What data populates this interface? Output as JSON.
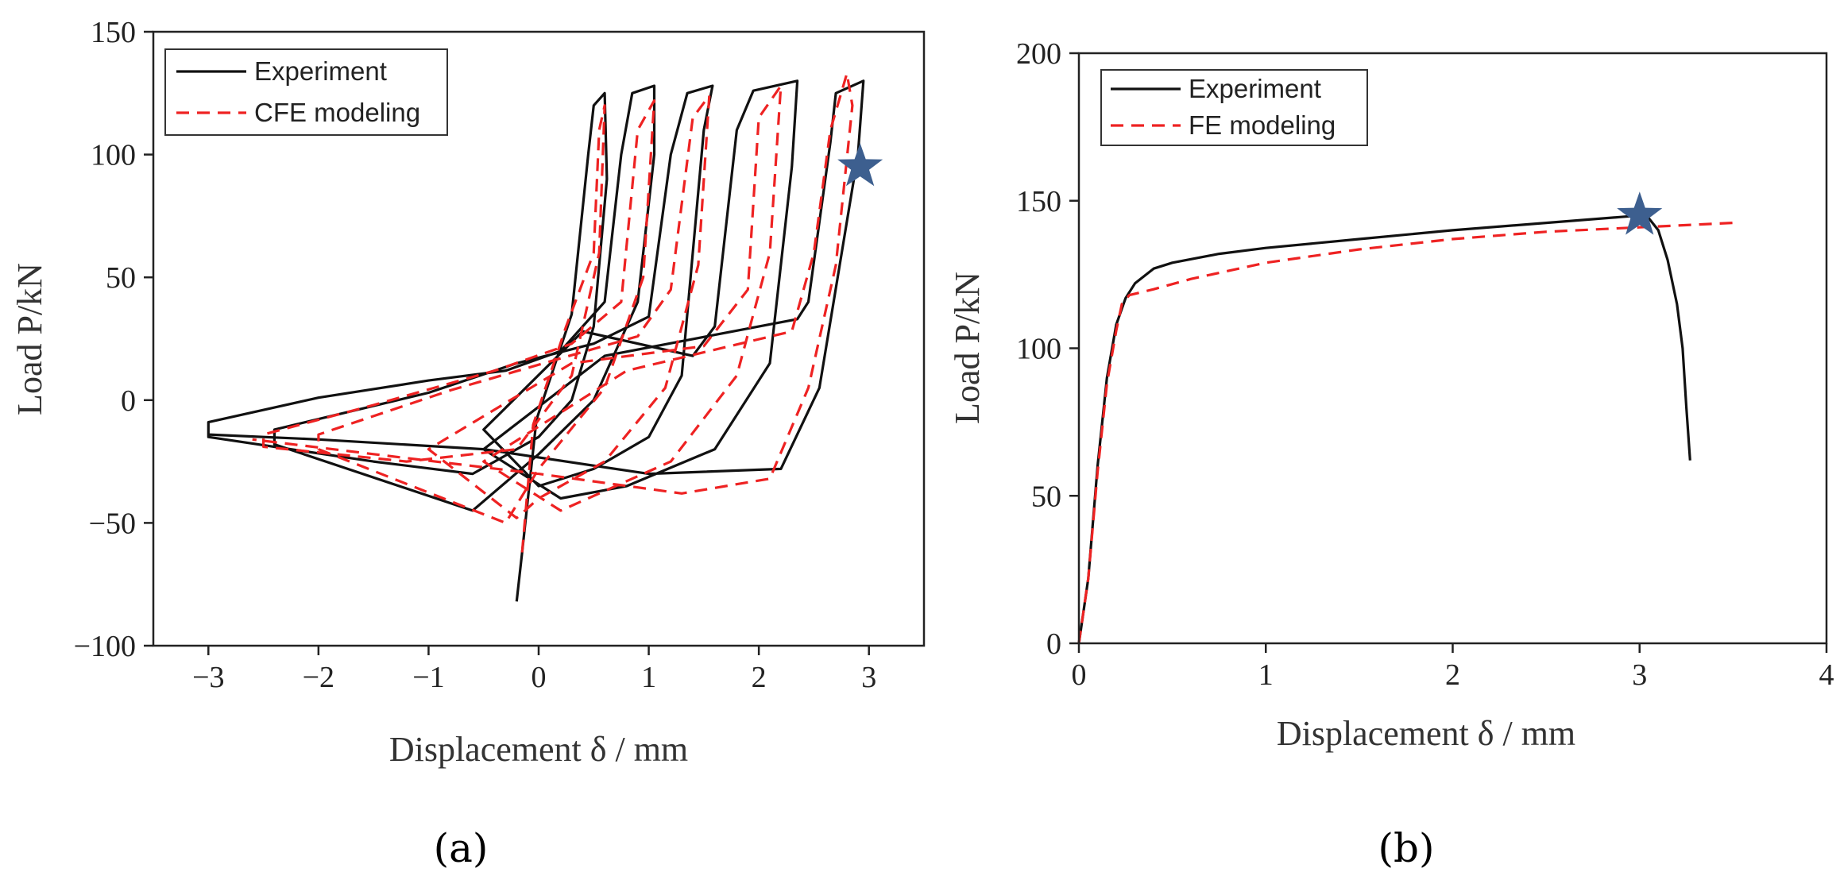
{
  "chart_data": [
    {
      "panel": "a",
      "caption": "(a)",
      "type": "line",
      "title": "",
      "xlabel": "Displacement  δ / mm",
      "ylabel": "Load  P/kN",
      "xlim": [
        -3.5,
        3.5
      ],
      "ylim": [
        -100,
        150
      ],
      "xticks": [
        -3,
        -2,
        -1,
        0,
        1,
        2,
        3
      ],
      "xtick_labels": [
        "−3",
        "−2",
        "−1",
        "0",
        "1",
        "2",
        "3"
      ],
      "yticks": [
        -100,
        -50,
        0,
        50,
        100,
        150
      ],
      "ytick_labels": [
        "−100",
        "−50",
        "0",
        "50",
        "100",
        "150"
      ],
      "legend": [
        {
          "label": "Experiment",
          "color": "#111111",
          "style": "solid"
        },
        {
          "label": "CFE modeling",
          "color": "#ee2222",
          "style": "dashed"
        }
      ],
      "legend_position": "top-left",
      "marker": {
        "shape": "star",
        "x": 2.92,
        "y": 95,
        "color": "#3d5f8f"
      },
      "series": [
        {
          "name": "Experiment",
          "loops": [
            [
              [
                -0.2,
                -82
              ],
              [
                -0.15,
                -62
              ],
              [
                -0.02,
                -8
              ],
              [
                0.3,
                35
              ],
              [
                0.45,
                100
              ],
              [
                0.5,
                120
              ],
              [
                0.6,
                125
              ],
              [
                0.62,
                90
              ],
              [
                0.5,
                30
              ],
              [
                0.3,
                0
              ],
              [
                0,
                -15
              ],
              [
                -0.6,
                -30
              ],
              [
                -1.5,
                -25
              ],
              [
                -3,
                -15
              ],
              [
                -3,
                -9
              ],
              [
                -2,
                1
              ],
              [
                -1,
                8
              ],
              [
                -0.3,
                12
              ],
              [
                0.2,
                20
              ],
              [
                0.6,
                40
              ],
              [
                0.75,
                100
              ],
              [
                0.85,
                125
              ],
              [
                1.05,
                128
              ],
              [
                1.05,
                100
              ],
              [
                0.9,
                40
              ],
              [
                0.5,
                0
              ],
              [
                0,
                -22
              ],
              [
                -0.6,
                -45
              ],
              [
                -2.4,
                -18
              ],
              [
                -2.4,
                -12
              ],
              [
                -1,
                3
              ],
              [
                -0.2,
                15
              ],
              [
                0.5,
                23
              ],
              [
                1.0,
                34
              ],
              [
                1.2,
                100
              ],
              [
                1.35,
                125
              ],
              [
                1.58,
                128
              ],
              [
                1.5,
                110
              ],
              [
                1.3,
                10
              ],
              [
                1,
                -15
              ],
              [
                0.5,
                -28
              ],
              [
                0,
                -35
              ],
              [
                -0.5,
                -12
              ],
              [
                0.4,
                28
              ],
              [
                1.4,
                18
              ],
              [
                1.6,
                30
              ],
              [
                1.8,
                110
              ],
              [
                1.95,
                126
              ],
              [
                2.35,
                130
              ],
              [
                2.3,
                95
              ],
              [
                2.1,
                15
              ],
              [
                1.6,
                -20
              ],
              [
                0.8,
                -35
              ],
              [
                0.2,
                -40
              ],
              [
                -0.5,
                -20
              ],
              [
                0.6,
                18
              ],
              [
                2.35,
                33
              ],
              [
                2.45,
                40
              ],
              [
                2.65,
                105
              ],
              [
                2.7,
                125
              ],
              [
                2.95,
                130
              ],
              [
                2.9,
                100
              ],
              [
                2.55,
                5
              ],
              [
                2.2,
                -28
              ],
              [
                1,
                -30
              ],
              [
                -0.5,
                -20
              ],
              [
                -2,
                -16
              ],
              [
                -3,
                -14
              ]
            ]
          ]
        },
        {
          "name": "CFE modeling",
          "loops": [
            [
              [
                -0.15,
                -62
              ],
              [
                -0.05,
                -10
              ],
              [
                0.25,
                30
              ],
              [
                0.5,
                60
              ],
              [
                0.55,
                110
              ],
              [
                0.6,
                120
              ],
              [
                0.55,
                60
              ],
              [
                0.3,
                10
              ],
              [
                -0.2,
                -20
              ],
              [
                -1.2,
                -25
              ],
              [
                -2.5,
                -19
              ],
              [
                -2.5,
                -14
              ],
              [
                -1.5,
                -2
              ],
              [
                -0.4,
                12
              ],
              [
                0.3,
                23
              ],
              [
                0.75,
                40
              ],
              [
                0.9,
                110
              ],
              [
                1.05,
                122
              ],
              [
                0.95,
                50
              ],
              [
                0.6,
                5
              ],
              [
                0,
                -28
              ],
              [
                -0.3,
                -50
              ],
              [
                -2,
                -20
              ],
              [
                -2,
                -14
              ],
              [
                -0.8,
                4
              ],
              [
                0.2,
                17
              ],
              [
                0.9,
                26
              ],
              [
                1.2,
                45
              ],
              [
                1.4,
                115
              ],
              [
                1.55,
                124
              ],
              [
                1.45,
                55
              ],
              [
                1.15,
                5
              ],
              [
                0.6,
                -25
              ],
              [
                0,
                -40
              ],
              [
                -0.2,
                -48
              ],
              [
                -1,
                -20
              ],
              [
                0.3,
                15
              ],
              [
                1.5,
                22
              ],
              [
                1.9,
                45
              ],
              [
                2.0,
                115
              ],
              [
                2.2,
                128
              ],
              [
                2.1,
                60
              ],
              [
                1.8,
                10
              ],
              [
                1.2,
                -25
              ],
              [
                0.2,
                -45
              ],
              [
                -0.5,
                -25
              ],
              [
                0.8,
                12
              ],
              [
                2.3,
                28
              ],
              [
                2.5,
                60
              ],
              [
                2.65,
                110
              ],
              [
                2.8,
                133
              ],
              [
                2.85,
                120
              ],
              [
                2.7,
                55
              ],
              [
                2.45,
                5
              ],
              [
                2.1,
                -32
              ],
              [
                1.3,
                -38
              ],
              [
                0,
                -30
              ],
              [
                -1.5,
                -22
              ],
              [
                -2.6,
                -16
              ]
            ]
          ]
        }
      ]
    },
    {
      "panel": "b",
      "caption": "(b)",
      "type": "line",
      "title": "",
      "xlabel": "Displacement  δ / mm",
      "ylabel": "Load  P/kN",
      "xlim": [
        0,
        4
      ],
      "ylim": [
        0,
        200
      ],
      "xticks": [
        0,
        1,
        2,
        3,
        4
      ],
      "xtick_labels": [
        "0",
        "1",
        "2",
        "3",
        "4"
      ],
      "yticks": [
        0,
        50,
        100,
        150,
        200
      ],
      "ytick_labels": [
        "0",
        "50",
        "100",
        "150",
        "200"
      ],
      "legend": [
        {
          "label": "Experiment",
          "color": "#111111",
          "style": "solid"
        },
        {
          "label": "FE modeling",
          "color": "#ee2222",
          "style": "dashed"
        }
      ],
      "legend_position": "top-left",
      "marker": {
        "shape": "star",
        "x": 3.0,
        "y": 145,
        "color": "#3d5f8f"
      },
      "series": [
        {
          "name": "Experiment",
          "points": [
            [
              0,
              0
            ],
            [
              0.05,
              22
            ],
            [
              0.1,
              60
            ],
            [
              0.15,
              90
            ],
            [
              0.2,
              108
            ],
            [
              0.25,
              117
            ],
            [
              0.3,
              122
            ],
            [
              0.4,
              127
            ],
            [
              0.5,
              129
            ],
            [
              0.75,
              132
            ],
            [
              1.0,
              134
            ],
            [
              1.5,
              137
            ],
            [
              2.0,
              140
            ],
            [
              2.5,
              142.5
            ],
            [
              2.9,
              144.5
            ],
            [
              3.0,
              145
            ],
            [
              3.05,
              144
            ],
            [
              3.1,
              140
            ],
            [
              3.15,
              130
            ],
            [
              3.2,
              115
            ],
            [
              3.23,
              100
            ],
            [
              3.25,
              80
            ],
            [
              3.27,
              62
            ]
          ]
        },
        {
          "name": "FE modeling",
          "points": [
            [
              0,
              0
            ],
            [
              0.05,
              22
            ],
            [
              0.1,
              58
            ],
            [
              0.15,
              88
            ],
            [
              0.2,
              106
            ],
            [
              0.23,
              115
            ],
            [
              0.27,
              118
            ],
            [
              0.4,
              120
            ],
            [
              0.6,
              123.5
            ],
            [
              1.0,
              129
            ],
            [
              1.5,
              133.5
            ],
            [
              2.0,
              137
            ],
            [
              2.5,
              139.5
            ],
            [
              3.0,
              141
            ],
            [
              3.5,
              142.5
            ]
          ]
        }
      ]
    }
  ]
}
